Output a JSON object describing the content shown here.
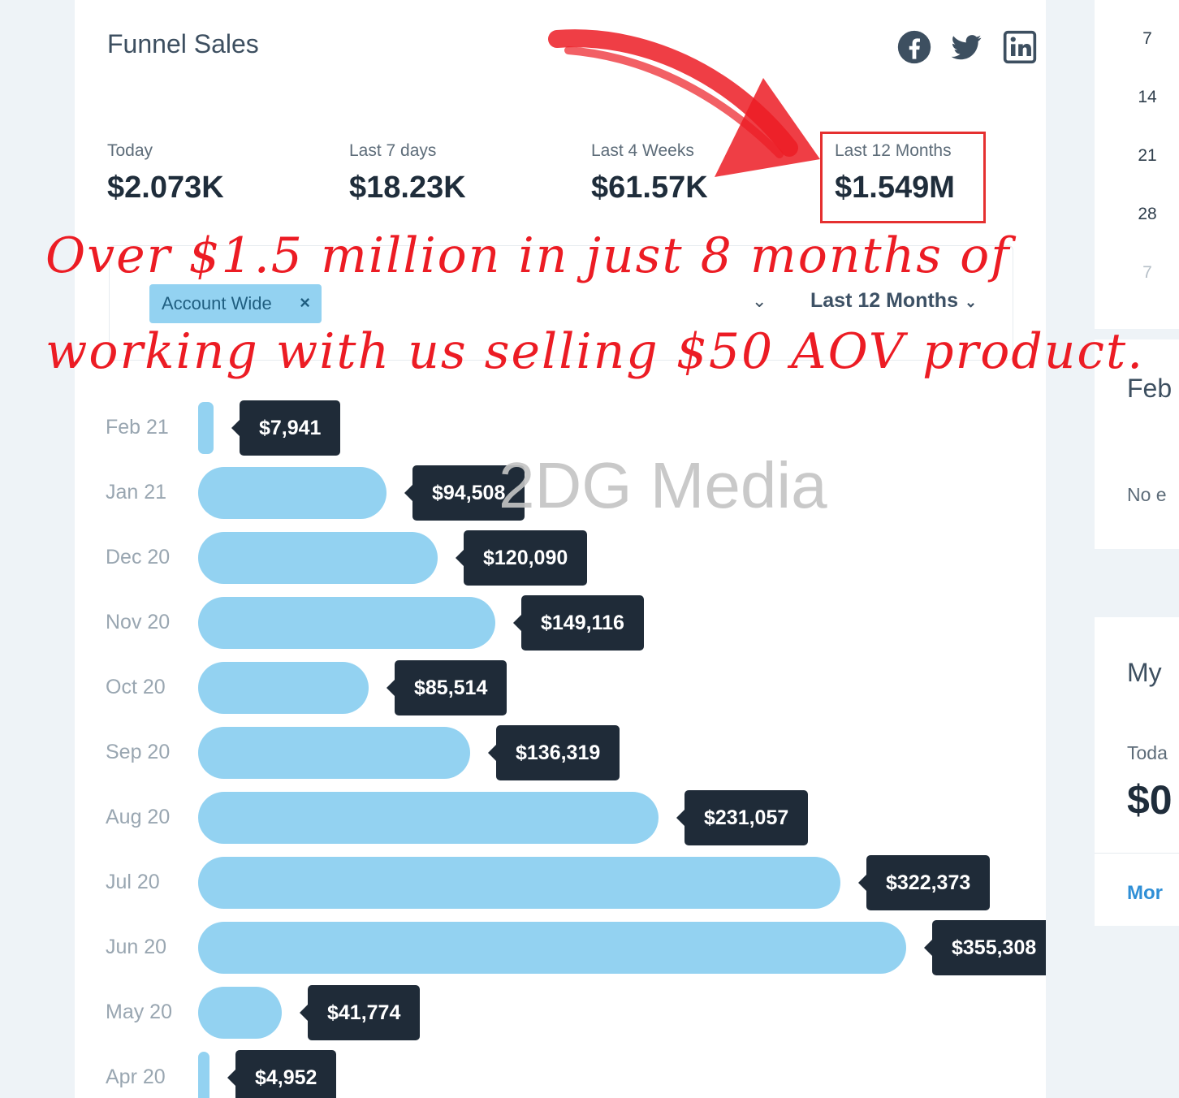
{
  "card": {
    "title": "Funnel Sales"
  },
  "social_icons": [
    "facebook-icon",
    "twitter-icon",
    "linkedin-icon"
  ],
  "stats": [
    {
      "label": "Today",
      "value": "$2.073K"
    },
    {
      "label": "Last 7 days",
      "value": "$18.23K"
    },
    {
      "label": "Last 4 Weeks",
      "value": "$61.57K"
    },
    {
      "label": "Last 12 Months",
      "value": "$1.549M"
    }
  ],
  "filters": {
    "chip_label": "Account Wide",
    "chip_remove": "×",
    "period": "Last 12 Months"
  },
  "annotation": {
    "line1": "Over $1.5 million  in just 8 months of",
    "line2": "working with us selling $50 AOV product."
  },
  "watermark": "2DG Media",
  "chart_data": {
    "type": "bar",
    "orientation": "horizontal",
    "categories": [
      "Feb 21",
      "Jan 21",
      "Dec 20",
      "Nov 20",
      "Oct 20",
      "Sep 20",
      "Aug 20",
      "Jul 20",
      "Jun 20",
      "May 20",
      "Apr 20"
    ],
    "values": [
      7941,
      94508,
      120090,
      149116,
      85514,
      136319,
      231057,
      322373,
      355308,
      41774,
      4952
    ],
    "value_labels": [
      "$7,941",
      "$94,508",
      "$120,090",
      "$149,116",
      "$85,514",
      "$136,319",
      "$231,057",
      "$322,373",
      "$355,308",
      "$41,774",
      "$4,952"
    ],
    "bar_color": "#93d2f1"
  },
  "side": {
    "calendar_days": [
      "7",
      "14",
      "21",
      "28",
      "7"
    ],
    "month_partial": "Feb",
    "empty_partial": "No e",
    "widget_title_partial": "My",
    "today_partial": "Toda",
    "value_partial": "$0",
    "more_partial": "Mor"
  },
  "colors": {
    "accent": "#93d2f1",
    "tooltip": "#1f2b38",
    "annotation": "#ec1c24"
  }
}
